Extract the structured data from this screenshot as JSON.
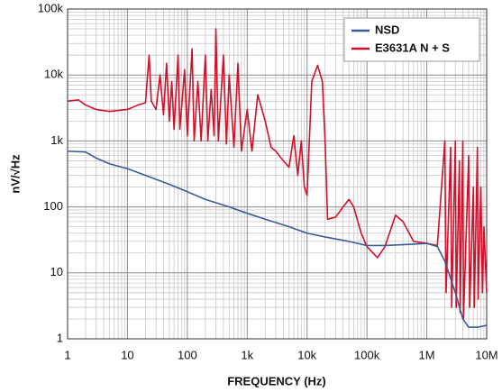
{
  "chart_data": {
    "type": "line",
    "xlabel": "FREQUENCY (Hz)",
    "ylabel": "nV/√Hz",
    "xscale": "log",
    "yscale": "log",
    "grid": true,
    "minor_grid": true,
    "legend": "upper right",
    "xlim": [
      1,
      10000000
    ],
    "ylim": [
      1,
      100000
    ],
    "xticks": [
      1,
      10,
      100,
      {
        "value": 1000,
        "label": "1k"
      },
      {
        "value": 10000,
        "label": "10k"
      },
      {
        "value": 100000,
        "label": "100k"
      },
      {
        "value": 1000000,
        "label": "1M"
      },
      {
        "value": 10000000,
        "label": "10M"
      }
    ],
    "yticks": [
      1,
      10,
      100,
      {
        "value": 1000,
        "label": "1k"
      },
      {
        "value": 10000,
        "label": "10k"
      },
      {
        "value": 100000,
        "label": "100k"
      }
    ],
    "series": [
      {
        "name": "NSD",
        "color": "#3b5b96",
        "x": [
          1,
          2,
          3,
          5,
          10,
          20,
          50,
          100,
          200,
          500,
          1000,
          2000,
          5000,
          10000,
          20000,
          50000,
          100000,
          200000,
          500000,
          1000000,
          1500000,
          2000000,
          3000000,
          4000000,
          5000000,
          7000000,
          10000000
        ],
        "values": [
          700,
          680,
          550,
          450,
          380,
          300,
          220,
          170,
          130,
          100,
          80,
          65,
          50,
          40,
          35,
          30,
          26,
          26,
          27,
          28,
          25,
          15,
          5,
          2,
          1.5,
          1.5,
          1.6
        ]
      },
      {
        "name": "E3631A N + S",
        "color": "#d0112b",
        "x": [
          1,
          1.5,
          2,
          3,
          5,
          7,
          10,
          15,
          20,
          23,
          25,
          30,
          35,
          40,
          45,
          50,
          55,
          60,
          70,
          75,
          90,
          100,
          120,
          130,
          150,
          170,
          200,
          220,
          250,
          280,
          300,
          330,
          400,
          450,
          500,
          600,
          700,
          800,
          1000,
          1200,
          1500,
          2000,
          2500,
          3000,
          4000,
          5000,
          6000,
          7000,
          8000,
          9000,
          10000,
          12000,
          15000,
          18000,
          20000,
          22000,
          30000,
          40000,
          50000,
          60000,
          80000,
          100000,
          150000,
          200000,
          300000,
          400000,
          600000,
          1000000,
          1500000,
          2000000,
          2100000,
          2500000,
          2600000,
          3000000,
          3100000,
          3500000,
          3600000,
          4000000,
          4100000,
          5000000,
          5200000,
          6000000,
          6200000,
          7000000,
          7200000,
          8000000,
          8500000,
          9000000,
          10000000
        ],
        "values": [
          4000,
          4200,
          3500,
          3000,
          2800,
          2900,
          3000,
          3500,
          3800,
          20000,
          4000,
          3000,
          10000,
          2500,
          15000,
          2000,
          8000,
          1500,
          20000,
          1500,
          12000,
          1200,
          25000,
          1000,
          8000,
          1000,
          20000,
          1000,
          6000,
          1200,
          50000,
          1000,
          20000,
          900,
          10000,
          800,
          15000,
          700,
          3000,
          700,
          5000,
          2000,
          800,
          700,
          500,
          400,
          1200,
          300,
          1000,
          200,
          150,
          8000,
          14000,
          8000,
          1000,
          65,
          70,
          100,
          130,
          100,
          40,
          25,
          17,
          25,
          75,
          60,
          30,
          28,
          26,
          1000,
          5,
          800,
          3,
          1000,
          3,
          500,
          2.5,
          1000,
          2,
          600,
          3,
          200,
          3,
          800,
          4,
          200,
          5,
          50,
          5
        ]
      }
    ]
  }
}
